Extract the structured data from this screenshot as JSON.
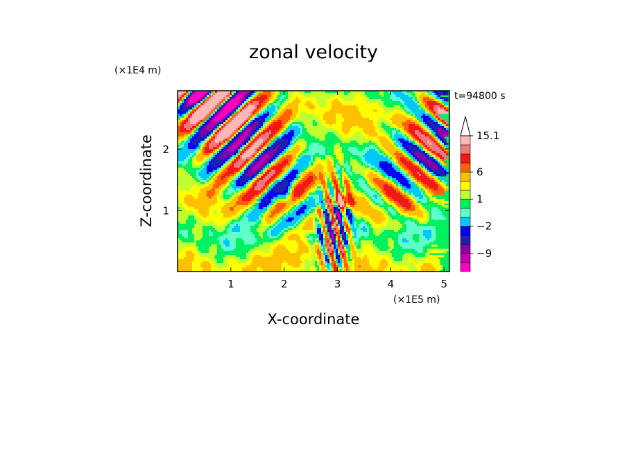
{
  "chart_data": {
    "type": "heatmap",
    "title": "zonal velocity",
    "xlabel": "X-coordinate",
    "ylabel": "Z-coordinate",
    "x_scale_label": "(×1E5 m)",
    "y_scale_label": "(×1E4 m)",
    "time_label": "t=94800 s",
    "xlim": [
      0,
      5.1
    ],
    "ylim": [
      0,
      2.95
    ],
    "x_ticks": [
      1,
      2,
      3,
      4,
      5
    ],
    "y_ticks": [
      1,
      2
    ],
    "colorbar": {
      "levels": [
        -15,
        -12,
        -9,
        -6,
        -4,
        -2,
        -1,
        0,
        1,
        2,
        4,
        6,
        9,
        12,
        15.1
      ],
      "colors": [
        "#ff00c0",
        "#c000b0",
        "#8800a8",
        "#2020b0",
        "#0000f0",
        "#00c8ff",
        "#60ffc8",
        "#00f060",
        "#c0ff30",
        "#ffff00",
        "#ffc000",
        "#ff6000",
        "#f01818",
        "#f07878",
        "#ffb8b8"
      ],
      "extend_top": true,
      "labels": [
        "15.1",
        "6",
        "1",
        "−2",
        "−9"
      ],
      "label_levels": [
        15.1,
        6,
        1,
        -2,
        -9
      ]
    }
  }
}
